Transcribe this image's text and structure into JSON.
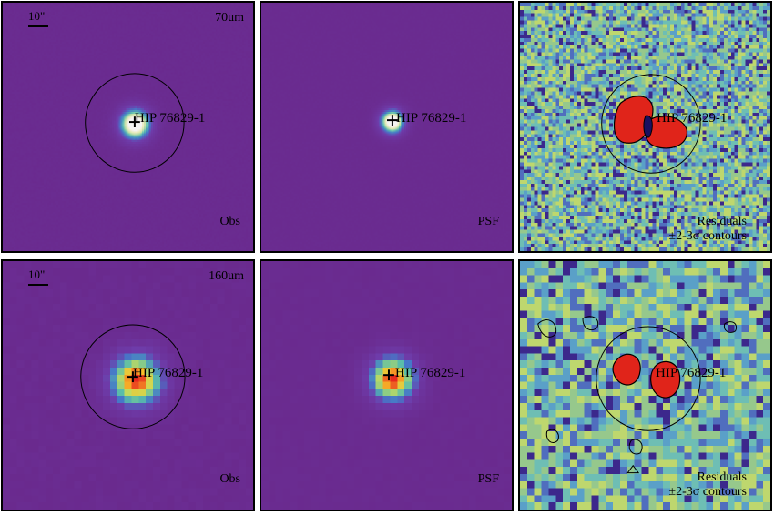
{
  "panels": [
    {
      "id": "obs70",
      "row": 0,
      "col": 0,
      "kind": "obs",
      "wavelength": "70um",
      "scale_label": "10\"",
      "corner_label": "Obs",
      "target_label": "HIP 76829-1",
      "source_sigma": 0.045,
      "noise": 0.0
    },
    {
      "id": "psf70",
      "row": 0,
      "col": 1,
      "kind": "psf",
      "corner_label": "PSF",
      "target_label": "HIP 76829-1",
      "source_sigma": 0.035
    },
    {
      "id": "res70",
      "row": 0,
      "col": 2,
      "kind": "residual",
      "residual_label_1": "Residuals",
      "residual_label_2": "±2-3σ contours",
      "target_label": "HIP 76829-1",
      "pixel": "fine"
    },
    {
      "id": "obs160",
      "row": 1,
      "col": 0,
      "kind": "obs",
      "wavelength": "160um",
      "scale_label": "10\"",
      "corner_label": "Obs",
      "target_label": "HIP 76829-1",
      "source_sigma": 0.07
    },
    {
      "id": "psf160",
      "row": 1,
      "col": 1,
      "kind": "psf",
      "corner_label": "PSF",
      "target_label": "HIP 76829-1",
      "source_sigma": 0.06
    },
    {
      "id": "res160",
      "row": 1,
      "col": 2,
      "kind": "residual",
      "residual_label_1": "Residuals",
      "residual_label_2": "±2-3σ contours",
      "target_label": "HIP 76829-1",
      "pixel": "coarse"
    }
  ],
  "colors": {
    "background": "#6a2a8e",
    "residual_base": "#6aaec0",
    "residual_hot": "#e0241a",
    "ring": "#000000"
  }
}
